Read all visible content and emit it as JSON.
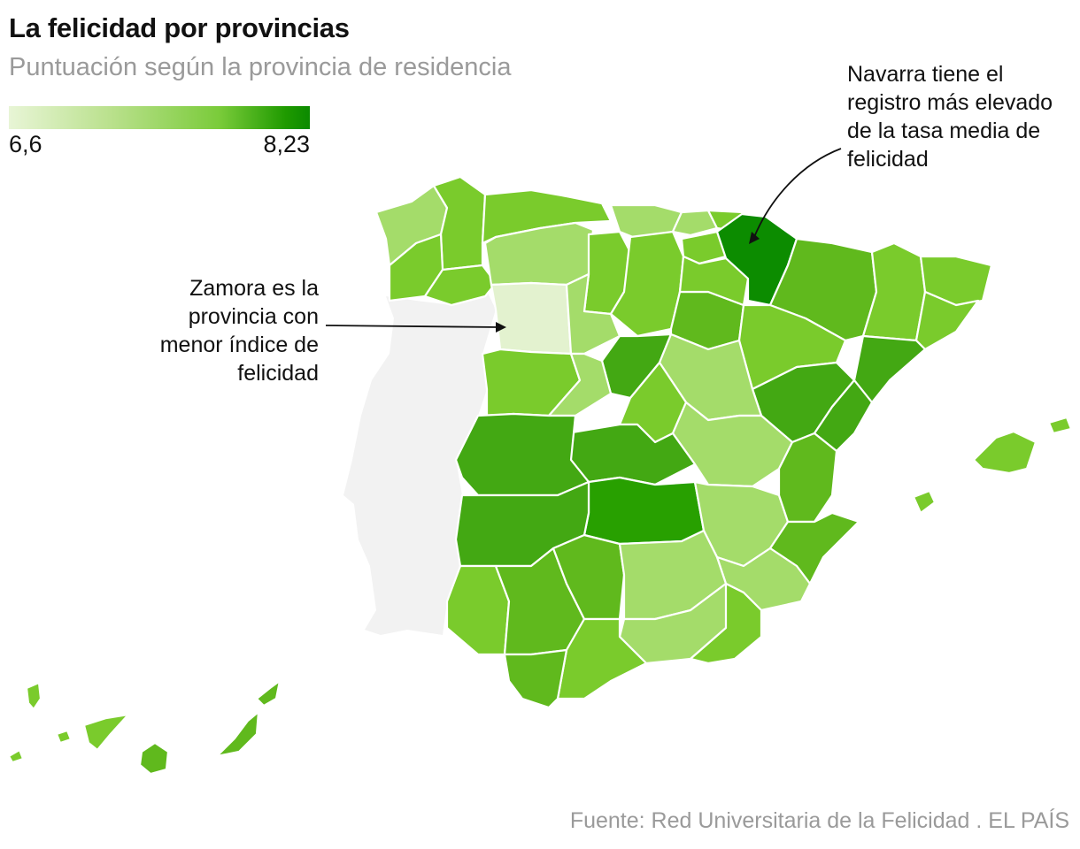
{
  "header": {
    "title": "La felicidad por provincias",
    "subtitle": "Puntuación según la provincia de residencia"
  },
  "legend": {
    "min_label": "6,6",
    "max_label": "8,23",
    "min_value": 6.6,
    "max_value": 8.23,
    "color_low": "#e8f5d6",
    "color_high": "#0b8a00"
  },
  "annotations": {
    "navarra": "Navarra tiene el registro más elevado de la tasa media de felicidad",
    "zamora": "Zamora es la provincia con menor índice de felicidad"
  },
  "footer": {
    "source": "Fuente: Red Universitaria de la Felicidad . EL PAÍS"
  },
  "colors": {
    "lightest": "#e3f2cf",
    "light": "#a4dc6a",
    "medium": "#7acb2c",
    "mediumdark": "#60b91d",
    "dark": "#43a813",
    "darker": "#28a000",
    "darkest": "#0c8c00",
    "portugal": "#f2f2f2"
  }
}
